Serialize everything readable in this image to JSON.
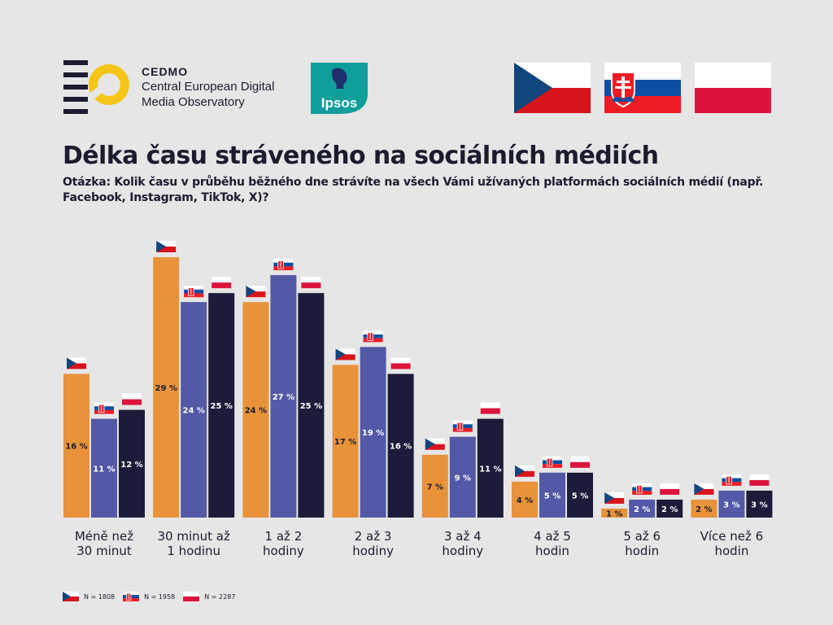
{
  "header": {
    "org_name": "CEDMO",
    "org_line1": "Central European Digital",
    "org_line2": "Media Observatory",
    "partner_logo_text": "Ipsos"
  },
  "title": "Délka času stráveného na sociálních médiích",
  "question": "Otázka: Kolik času v průběhu běžného dne strávíte na všech Vámi užívaných platformách sociálních médií (např. Facebook, Instagram, TikTok, X)?",
  "colors": {
    "cz": "#e8923a",
    "sk": "#5359a6",
    "pl": "#1c1c3a",
    "background": "#e6e6e6"
  },
  "legend": [
    {
      "country": "cz",
      "label": "N = 1808"
    },
    {
      "country": "sk",
      "label": "N = 1958"
    },
    {
      "country": "pl",
      "label": "N = 2287"
    }
  ],
  "chart_data": {
    "type": "bar",
    "categories": [
      [
        "Méně než",
        "30 minut"
      ],
      [
        "30 minut až",
        "1 hodinu"
      ],
      [
        "1 až 2",
        "hodiny"
      ],
      [
        "2 až 3",
        "hodiny"
      ],
      [
        "3 až 4",
        "hodiny"
      ],
      [
        "4 až 5",
        "hodin"
      ],
      [
        "5 až 6",
        "hodin"
      ],
      [
        "Více než 6",
        "hodin"
      ]
    ],
    "series": [
      {
        "country": "cz",
        "values": [
          16,
          29,
          24,
          17,
          7,
          4,
          1,
          2
        ]
      },
      {
        "country": "sk",
        "values": [
          11,
          24,
          27,
          19,
          9,
          5,
          2,
          3
        ]
      },
      {
        "country": "pl",
        "values": [
          12,
          25,
          25,
          16,
          11,
          5,
          2,
          3
        ]
      }
    ],
    "value_suffix": " %",
    "ylim": [
      0,
      29
    ],
    "grid": false
  }
}
